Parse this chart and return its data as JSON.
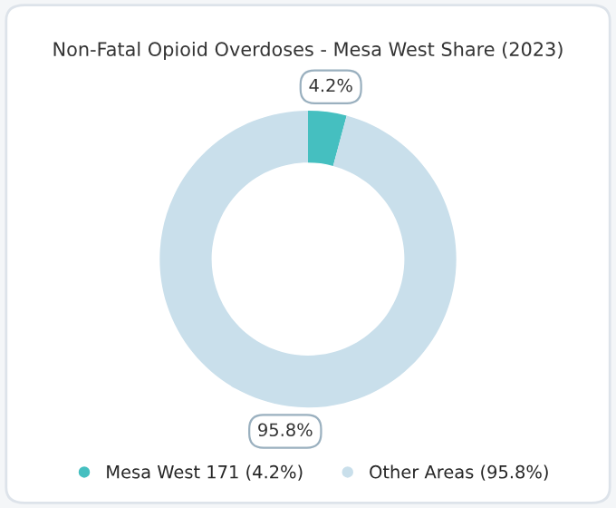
{
  "chart_data": {
    "type": "donut",
    "title": "Non-Fatal Opioid Overdoses - Mesa West Share (2023)",
    "categories": [
      "Mesa West 171 (4.2%)",
      "Other Areas (95.8%)"
    ],
    "values": [
      4.2,
      95.8
    ],
    "colors": [
      "#45bfc0",
      "#c9dfeb"
    ],
    "value_labels": [
      "4.2%",
      "95.8%"
    ],
    "legend": "bottom"
  }
}
